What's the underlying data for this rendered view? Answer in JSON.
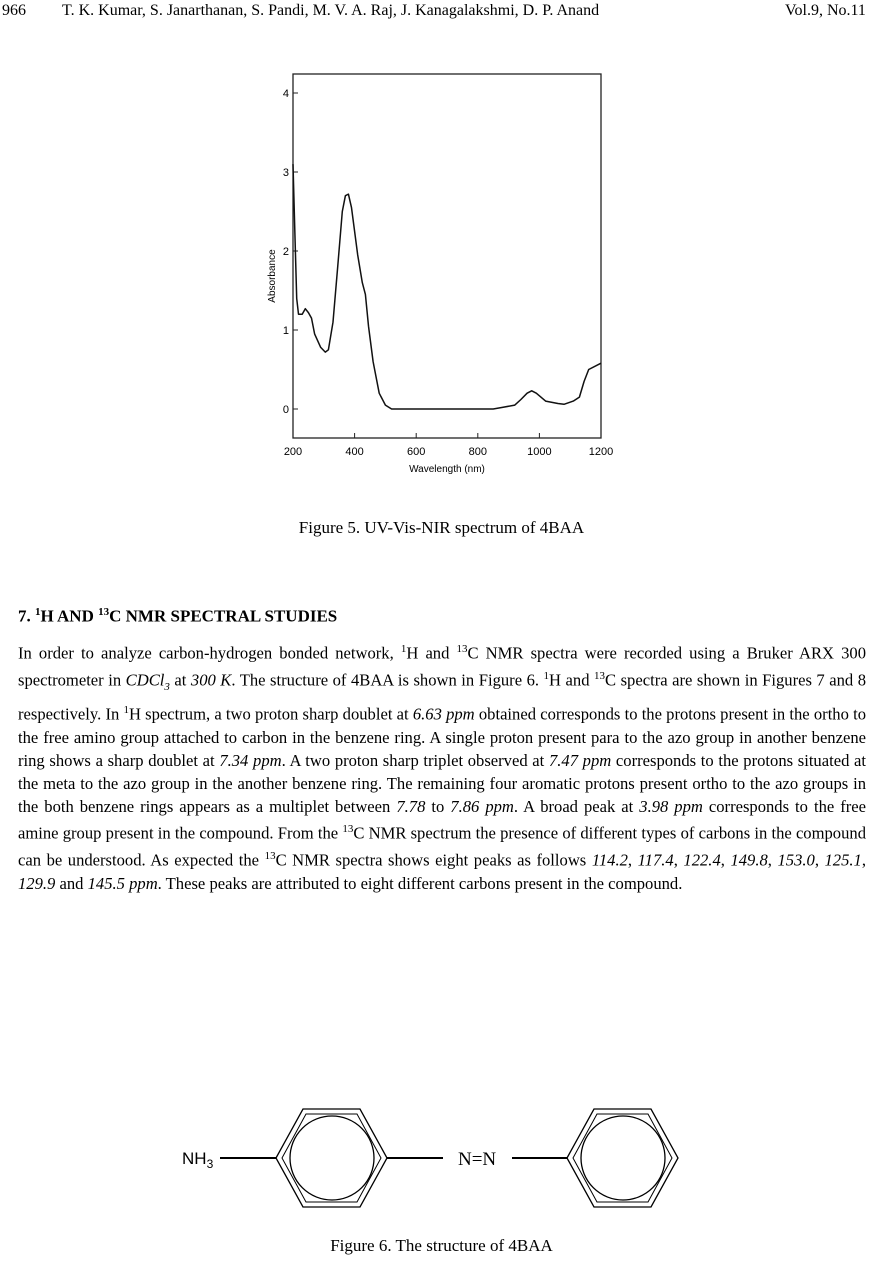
{
  "header": {
    "page": "966",
    "authors": "T. K. Kumar, S. Janarthanan, S. Pandi, M. V. A. Raj, J. Kanagalakshmi, D. P. Anand",
    "volume": "Vol.9, No.11"
  },
  "figure5": {
    "caption": "Figure 5. UV-Vis-NIR spectrum of 4BAA"
  },
  "chart_data": {
    "type": "line",
    "xlabel": "Wavelength (nm)",
    "ylabel": "Absorbance",
    "xlim": [
      200,
      1200
    ],
    "ylim": [
      -0.35,
      4.2
    ],
    "xticks": [
      "200",
      "400",
      "600",
      "800",
      "1000",
      "1200"
    ],
    "yticks": [
      "0",
      "1",
      "2",
      "3",
      "4"
    ],
    "grid": false,
    "x": [
      200,
      205,
      212,
      218,
      230,
      240,
      250,
      260,
      270,
      290,
      305,
      315,
      330,
      345,
      360,
      370,
      380,
      390,
      410,
      425,
      435,
      445,
      460,
      480,
      500,
      520,
      850,
      880,
      920,
      940,
      960,
      975,
      990,
      1020,
      1060,
      1080,
      1110,
      1130,
      1145,
      1160,
      1200
    ],
    "y": [
      3.1,
      2.4,
      1.4,
      1.2,
      1.2,
      1.27,
      1.22,
      1.15,
      0.95,
      0.78,
      0.72,
      0.75,
      1.1,
      1.8,
      2.5,
      2.7,
      2.72,
      2.55,
      1.95,
      1.6,
      1.45,
      1.05,
      0.6,
      0.2,
      0.05,
      0,
      0,
      0.02,
      0.05,
      0.12,
      0.2,
      0.23,
      0.2,
      0.1,
      0.07,
      0.06,
      0.1,
      0.15,
      0.35,
      0.5,
      0.58
    ]
  },
  "section": {
    "number": "7.",
    "sup1": "1",
    "h": "H AND ",
    "sup2": "13",
    "rest": "C NMR SPECTRAL STUDIES"
  },
  "paragraph": [
    {
      "t": "In order to analyze carbon-hydrogen bonded network, "
    },
    {
      "sup": "1"
    },
    {
      "t": "H and "
    },
    {
      "sup": "13"
    },
    {
      "t": "C NMR spectra were recorded using a Bruker ARX 300 spectrometer in "
    },
    {
      "i": "CDCl"
    },
    {
      "isub": "3"
    },
    {
      "t": " at "
    },
    {
      "i": "300 K"
    },
    {
      "t": ". The structure of 4BAA is shown in Figure 6. "
    },
    {
      "sup": "1"
    },
    {
      "t": "H and "
    },
    {
      "sup": "13"
    },
    {
      "t": "C spectra are shown in Figures 7 and 8 respectively. In "
    },
    {
      "sup": "1"
    },
    {
      "t": "H spectrum, a two proton sharp doublet at "
    },
    {
      "i": "6.63 ppm"
    },
    {
      "t": " obtained corresponds to the protons present in the ortho to the free amino group attached to carbon in the benzene ring. A single proton present para to the azo group in another benzene ring shows a sharp doublet at "
    },
    {
      "i": "7.34 ppm"
    },
    {
      "t": ". A two proton sharp triplet observed at "
    },
    {
      "i": "7.47 ppm"
    },
    {
      "t": " corresponds to the protons situated at the meta to the azo group in the another benzene ring. The remaining four aromatic protons present ortho to the azo groups in the both benzene rings appears as a multiplet between "
    },
    {
      "i": "7.78"
    },
    {
      "t": " to "
    },
    {
      "i": "7.86 ppm"
    },
    {
      "t": ". A broad peak at "
    },
    {
      "i": "3.98 ppm"
    },
    {
      "t": " corresponds to the free amine group present in the compound. From the "
    },
    {
      "sup": "13"
    },
    {
      "t": "C NMR spectrum the presence of different types of carbons in the compound can be understood. As expected the "
    },
    {
      "sup": "13"
    },
    {
      "t": "C NMR spectra shows eight peaks as follows "
    },
    {
      "i": "114.2"
    },
    {
      "t": ", "
    },
    {
      "i": "117.4"
    },
    {
      "t": ", "
    },
    {
      "i": "122.4"
    },
    {
      "t": ", "
    },
    {
      "i": "149.8"
    },
    {
      "t": ", "
    },
    {
      "i": "153.0"
    },
    {
      "t": ", "
    },
    {
      "i": "125.1"
    },
    {
      "t": ", "
    },
    {
      "i": "129.9"
    },
    {
      "t": " and "
    },
    {
      "i": "145.5 ppm"
    },
    {
      "t": ". These peaks are attributed to eight different carbons present in the compound."
    }
  ],
  "figure6": {
    "caption": "Figure 6. The structure of 4BAA",
    "nh": "NH",
    "nh_sub": "3",
    "azo": "N=N"
  }
}
